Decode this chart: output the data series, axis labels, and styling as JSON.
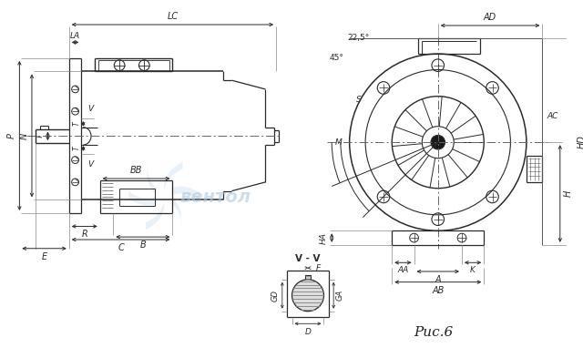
{
  "bg_color": "#ffffff",
  "line_color": "#2a2a2a",
  "watermark_text": "вентол",
  "watermark_color": "#adc8df",
  "fig_caption": "Рис.6",
  "vv_label": "V - V"
}
